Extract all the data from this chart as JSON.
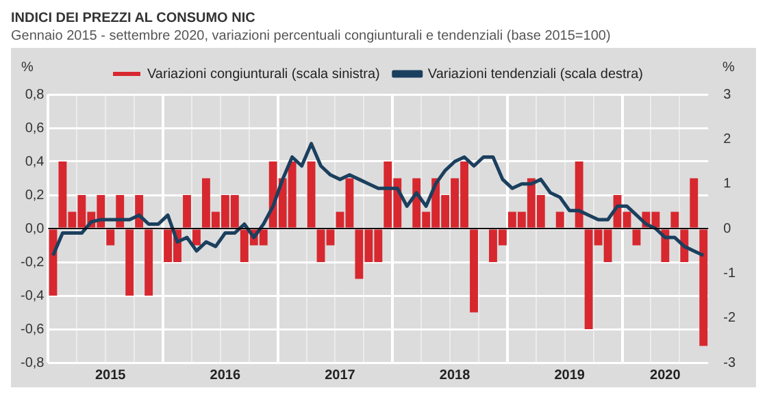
{
  "chart_data": {
    "type": "bar",
    "title": "INDICI DEI PREZZI AL CONSUMO NIC",
    "subtitle": "Gennaio 2015 - settembre 2020, variazioni percentuali congiunturali e tendenziali (base 2015=100)",
    "ylabel": "%",
    "y2label": "%",
    "categories": [
      null,
      null,
      null,
      null,
      null,
      null,
      "2015",
      null,
      null,
      null,
      null,
      null,
      null,
      null,
      null,
      null,
      null,
      null,
      "2016",
      null,
      null,
      null,
      null,
      null,
      null,
      null,
      null,
      null,
      null,
      null,
      "2017",
      null,
      null,
      null,
      null,
      null,
      null,
      null,
      null,
      null,
      null,
      null,
      "2018",
      null,
      null,
      null,
      null,
      null,
      null,
      null,
      null,
      null,
      null,
      null,
      "2019",
      null,
      null,
      null,
      null,
      null,
      null,
      null,
      null,
      null,
      "2020",
      null,
      null,
      null,
      null
    ],
    "series": [
      {
        "name": "Variazioni congiunturali (scala sinistra)",
        "color": "#d7282f",
        "values": [
          -0.4,
          0.4,
          0.1,
          0.2,
          0.1,
          0.2,
          -0.1,
          0.2,
          -0.4,
          0.2,
          -0.4,
          0.0,
          -0.2,
          -0.2,
          0.2,
          -0.1,
          0.3,
          0.1,
          0.2,
          0.2,
          -0.2,
          -0.1,
          -0.1,
          0.4,
          0.3,
          0.4,
          0.0,
          0.4,
          -0.2,
          -0.1,
          0.1,
          0.3,
          -0.3,
          -0.2,
          -0.2,
          0.4,
          0.3,
          0.0,
          0.3,
          0.1,
          0.3,
          0.2,
          0.3,
          0.4,
          -0.5,
          0.0,
          -0.2,
          -0.1,
          0.1,
          0.1,
          0.3,
          0.2,
          0.0,
          0.1,
          0.0,
          0.4,
          -0.6,
          -0.1,
          -0.2,
          0.2,
          0.1,
          -0.1,
          0.1,
          0.1,
          -0.2,
          0.1,
          -0.2,
          0.3,
          -0.7
        ]
      },
      {
        "name": "Variazioni tendenziali (scala destra)",
        "type": "line",
        "axis": "y2",
        "color": "#1b3f5e",
        "values": [
          -0.6,
          -0.1,
          -0.1,
          -0.1,
          0.15,
          0.2,
          0.2,
          0.2,
          0.2,
          0.3,
          0.1,
          0.1,
          0.3,
          -0.3,
          -0.2,
          -0.5,
          -0.3,
          -0.4,
          -0.1,
          -0.1,
          0.1,
          -0.2,
          0.1,
          0.5,
          1.1,
          1.6,
          1.4,
          1.9,
          1.4,
          1.2,
          1.1,
          1.2,
          1.1,
          1.0,
          0.9,
          0.9,
          0.9,
          0.5,
          0.8,
          0.5,
          1.0,
          1.3,
          1.5,
          1.6,
          1.4,
          1.6,
          1.6,
          1.1,
          0.9,
          1.0,
          1.0,
          1.1,
          0.8,
          0.7,
          0.4,
          0.4,
          0.3,
          0.2,
          0.2,
          0.5,
          0.5,
          0.3,
          0.1,
          0.0,
          -0.2,
          -0.2,
          -0.4,
          -0.5,
          -0.6
        ]
      }
    ],
    "ylim": [
      -0.8,
      0.8
    ],
    "yticks": [
      {
        "value": -0.8,
        "label": "-0,8"
      },
      {
        "value": -0.6,
        "label": "-0,6"
      },
      {
        "value": -0.4,
        "label": "-0,4"
      },
      {
        "value": -0.2,
        "label": "-0,2"
      },
      {
        "value": 0,
        "label": "0,0"
      },
      {
        "value": 0.2,
        "label": "0,2"
      },
      {
        "value": 0.4,
        "label": "0,4"
      },
      {
        "value": 0.6,
        "label": "0,6"
      },
      {
        "value": 0.8,
        "label": "0,8"
      }
    ],
    "y2lim": [
      -3,
      3
    ],
    "y2ticks": [
      -3,
      -2,
      -1,
      0,
      1,
      2,
      3
    ],
    "ref_lines": [
      {
        "axis": "y",
        "value": 0,
        "color": "#000000"
      }
    ],
    "grid": true,
    "legend": "top",
    "line_style": "solid",
    "marker": "none"
  }
}
